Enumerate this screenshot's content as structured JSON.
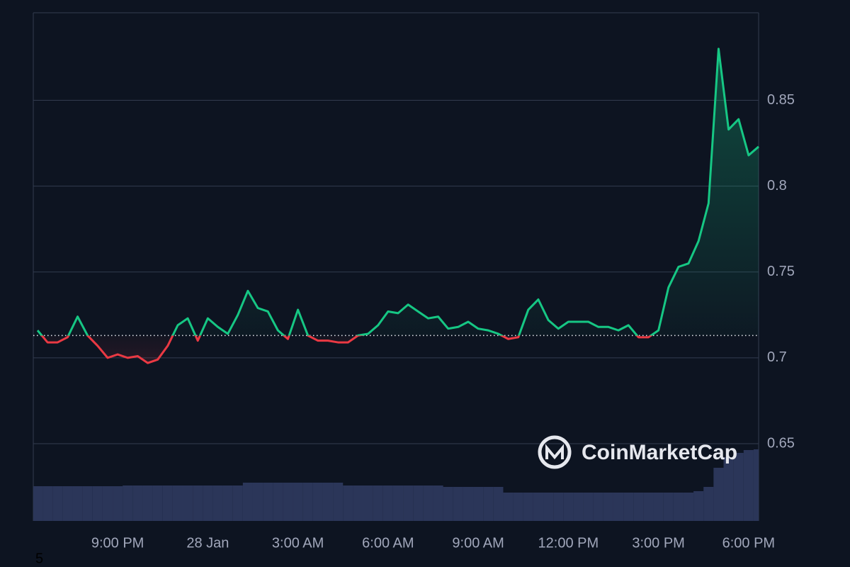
{
  "chart_data": {
    "type": "line",
    "categories": [
      null,
      null,
      null,
      null,
      null,
      null,
      null,
      null,
      "9:00 PM",
      null,
      null,
      null,
      null,
      null,
      null,
      null,
      null,
      "28 Jan",
      null,
      null,
      null,
      null,
      null,
      null,
      null,
      null,
      "3:00 AM",
      null,
      null,
      null,
      null,
      null,
      null,
      null,
      null,
      "6:00 AM",
      null,
      null,
      null,
      null,
      null,
      null,
      null,
      null,
      "9:00 AM",
      null,
      null,
      null,
      null,
      null,
      null,
      null,
      null,
      "12:00 PM",
      null,
      null,
      null,
      null,
      null,
      null,
      null,
      null,
      "3:00 PM",
      null,
      null,
      null,
      null,
      null,
      null,
      null,
      null,
      "6:00 PM",
      null
    ],
    "values": [
      0.716,
      0.709,
      0.709,
      0.712,
      0.724,
      0.713,
      0.707,
      0.7,
      0.702,
      0.7,
      0.701,
      0.697,
      0.699,
      0.707,
      0.719,
      0.723,
      0.71,
      0.723,
      0.718,
      0.714,
      0.725,
      0.739,
      0.729,
      0.727,
      0.716,
      0.711,
      0.728,
      0.713,
      0.71,
      0.71,
      0.709,
      0.709,
      0.713,
      0.714,
      0.719,
      0.727,
      0.726,
      0.731,
      0.727,
      0.723,
      0.724,
      0.717,
      0.718,
      0.721,
      0.717,
      0.716,
      0.714,
      0.711,
      0.712,
      0.728,
      0.734,
      0.722,
      0.717,
      0.721,
      0.721,
      0.721,
      0.718,
      0.718,
      0.716,
      0.719,
      0.712,
      0.712,
      0.716,
      0.741,
      0.753,
      0.755,
      0.768,
      0.79,
      0.88,
      0.833,
      0.839,
      0.818,
      0.823
    ],
    "volume": [
      49,
      49,
      49,
      49,
      49,
      49,
      49,
      49,
      49,
      50,
      50,
      50,
      50,
      50,
      50,
      50,
      50,
      50,
      50,
      50,
      50,
      54,
      54,
      54,
      54,
      54,
      54,
      54,
      54,
      54,
      54,
      50,
      50,
      50,
      50,
      50,
      50,
      50,
      50,
      50,
      50,
      48,
      48,
      48,
      48,
      48,
      48,
      40,
      40,
      40,
      40,
      40,
      40,
      40,
      40,
      40,
      40,
      40,
      40,
      40,
      40,
      40,
      40,
      40,
      40,
      40,
      42,
      48,
      75,
      90,
      96,
      100,
      101
    ],
    "baseline": 0.713,
    "up_color": "#16c784",
    "down_color": "#ea3943",
    "volume_color": "#2b3659",
    "ylim": [
      0.605,
      0.901
    ],
    "yticks": [
      0.65,
      0.7,
      0.75,
      0.8,
      0.85
    ],
    "grid": true,
    "watermark": "CoinMarketCap",
    "footnote": "5"
  }
}
